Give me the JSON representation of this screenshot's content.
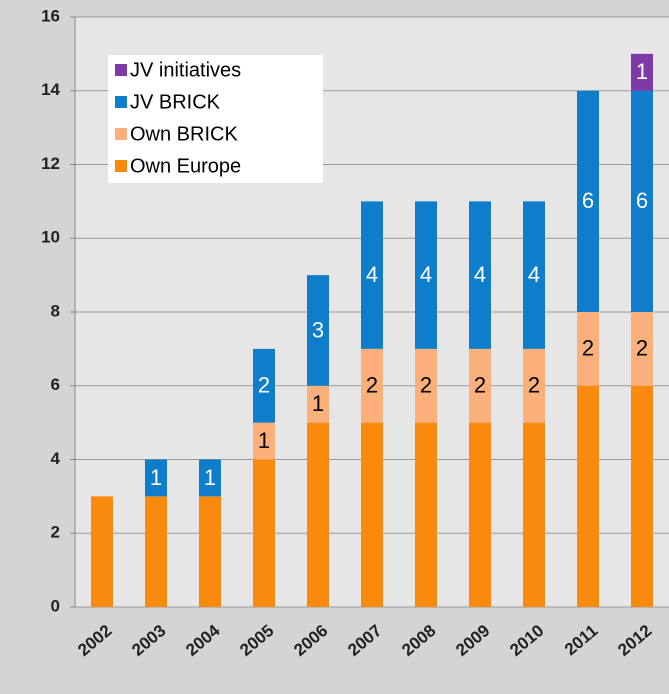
{
  "chart_data": {
    "type": "stacked_bar",
    "categories": [
      "2002",
      "2003",
      "2004",
      "2005",
      "2006",
      "2007",
      "2008",
      "2009",
      "2010",
      "2011",
      "2012"
    ],
    "series": [
      {
        "name": "Own Europe",
        "color": "#f98a0e",
        "data_labels": false,
        "values": [
          3,
          3,
          3,
          4,
          5,
          5,
          5,
          5,
          5,
          6,
          6
        ]
      },
      {
        "name": "Own BRICK",
        "color": "#fbb07c",
        "data_labels": true,
        "label_color": "#000000",
        "values": [
          0,
          0,
          0,
          1,
          1,
          2,
          2,
          2,
          2,
          2,
          2
        ]
      },
      {
        "name": "JV BRICK",
        "color": "#0e7ecb",
        "data_labels": true,
        "label_color": "#ffffff",
        "values": [
          0,
          1,
          1,
          2,
          3,
          4,
          4,
          4,
          4,
          6,
          6
        ]
      },
      {
        "name": "JV initiatives",
        "color": "#7e3aa6",
        "data_labels": true,
        "label_color": "#ffffff",
        "values": [
          0,
          0,
          0,
          0,
          0,
          0,
          0,
          0,
          0,
          0,
          1
        ]
      }
    ],
    "ylim": [
      0,
      16
    ],
    "yticks": [
      0,
      2,
      4,
      6,
      8,
      10,
      12,
      14,
      16
    ],
    "grid": true,
    "legend": "upper left"
  }
}
